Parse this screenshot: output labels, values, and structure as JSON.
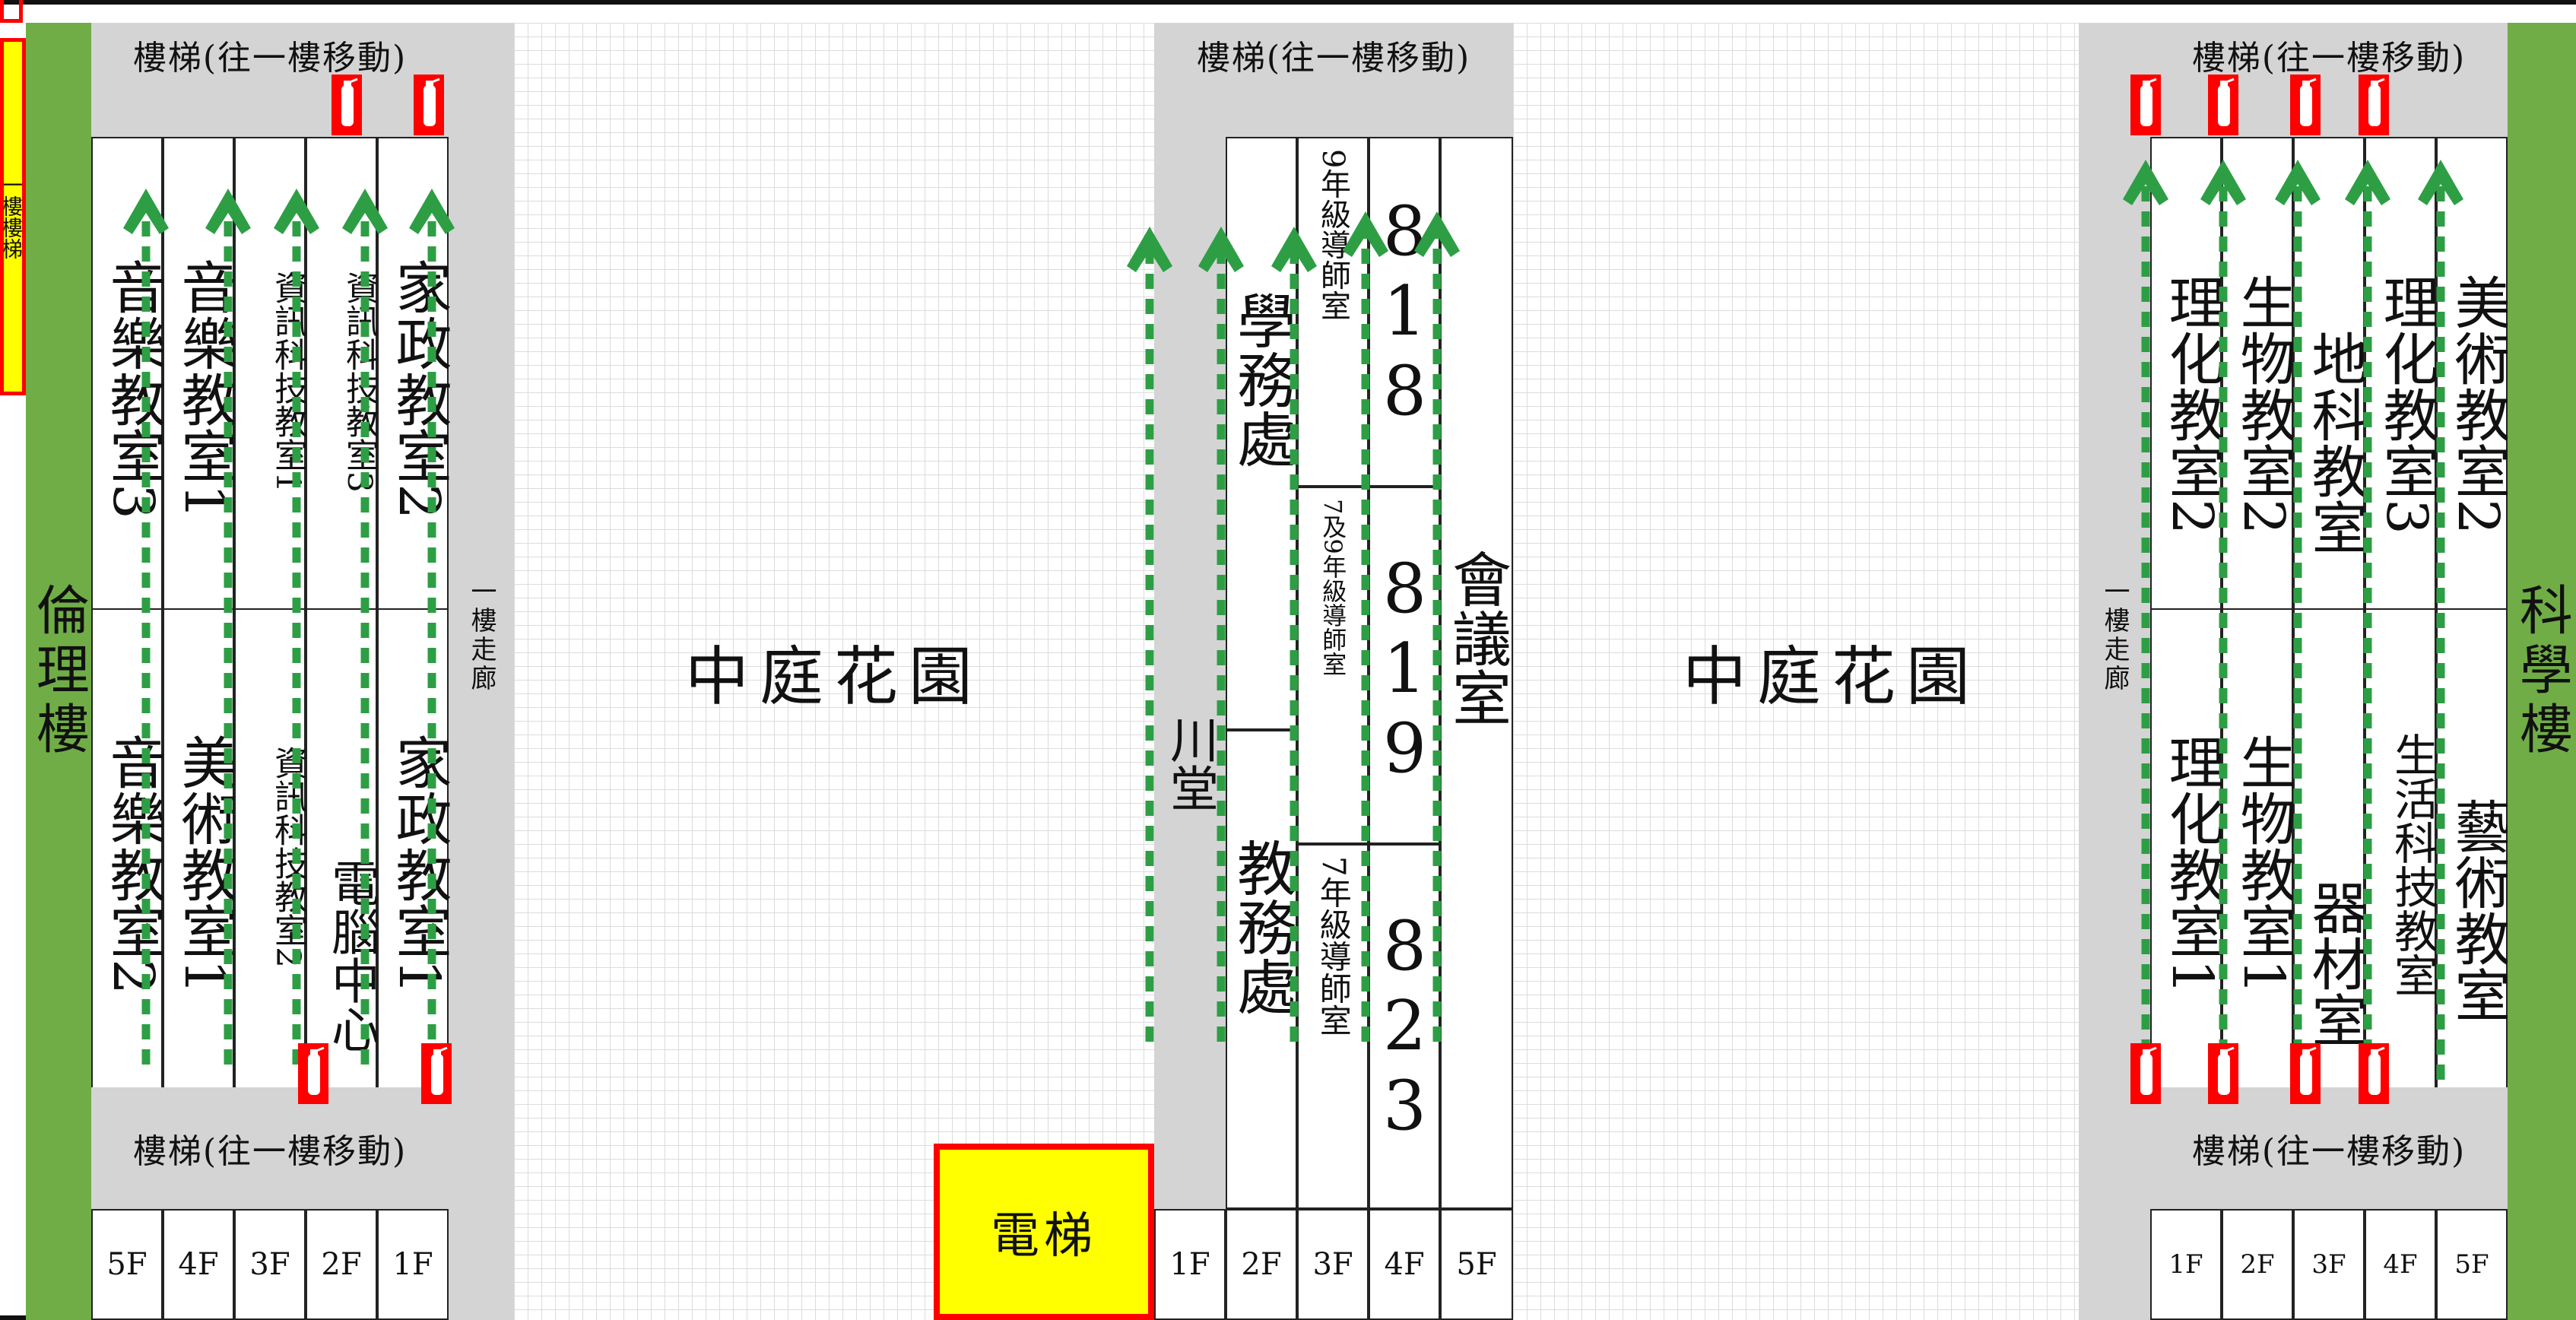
{
  "left_building": "倫理樓",
  "right_building": "科學樓",
  "left_marker_text": "一樓樓梯",
  "garden_label": "中庭花園",
  "corridor_label": "一樓走廊",
  "stairs_label": "樓梯(往一樓移動)",
  "elevator_label": "電梯",
  "left_upper_rooms": [
    "音樂教室3",
    "音樂教室1",
    "資訊科技教室1",
    "資訊科技教室3",
    "家政教室2"
  ],
  "left_lower_rooms": [
    "音樂教室2",
    "美術教室1",
    "資訊科技教室2",
    "電腦中心",
    "家政教室1"
  ],
  "middle": {
    "chuan_hall": "川堂",
    "student_affairs": "學務處",
    "academic_affairs": "教務處",
    "grade9_office": "9年級導師室",
    "grade79_office": "7及9年級導師室",
    "grade7_office": "7年級導師室",
    "room_818": "818",
    "room_819": "819",
    "room_823": "823",
    "meeting_room": "會議室"
  },
  "right_upper_rooms": [
    "理化教室2",
    "生物教室2",
    "地科教室",
    "理化教室3",
    "美術教室2"
  ],
  "right_lower_rooms": [
    "理化教室1",
    "生物教室1",
    "器材室",
    "生活科技教室",
    "藝術教室"
  ],
  "left_floor_buttons": [
    "5F",
    "4F",
    "3F",
    "2F",
    "1F"
  ],
  "middle_floor_buttons": [
    "1F",
    "2F",
    "3F",
    "4F",
    "5F"
  ],
  "right_floor_buttons": [
    "1F",
    "2F",
    "3F",
    "4F",
    "5F"
  ],
  "colors": {
    "building_green": "#70ad47",
    "arrow_green": "#2e9e45",
    "extinguisher_red": "#ff0000",
    "elevator_yellow": "#ffff00",
    "stair_gray": "#d4d4d4"
  },
  "icons": [
    "fire-extinguisher-icon",
    "arrow-up-icon"
  ]
}
